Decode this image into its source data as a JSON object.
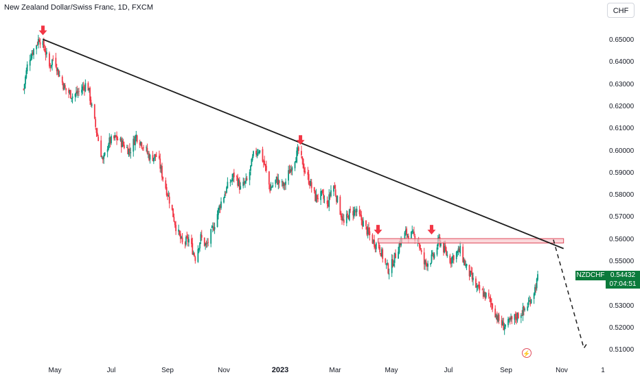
{
  "header": {
    "symbol_title": "New Zealand Dollar/Swiss Franc, 1D, FXCM",
    "currency_label": "CHF"
  },
  "last_price": {
    "symbol": "NZDCHF",
    "value": "0.54432",
    "countdown": "07:04:51",
    "color": "#0b7a3b"
  },
  "colors": {
    "up": "#089981",
    "down": "#f23645",
    "trendline": "#1e1e1e",
    "resistance_fill": "#f8c7cc",
    "resistance_stroke": "#e04a5a",
    "arrow": "#f23645"
  },
  "icons": {
    "flash": "flash-icon"
  },
  "chart_data": {
    "type": "candlestick",
    "title": "New Zealand Dollar/Swiss Franc, 1D, FXCM",
    "y_ticks": [
      "0.65000",
      "0.64000",
      "0.63000",
      "0.62000",
      "0.61000",
      "0.60000",
      "0.59000",
      "0.58000",
      "0.57000",
      "0.56000",
      "0.55000",
      "0.54000",
      "0.53000",
      "0.52000",
      "0.51000"
    ],
    "x_ticks": [
      {
        "label": "May",
        "bold": false
      },
      {
        "label": "Jul",
        "bold": false
      },
      {
        "label": "Sep",
        "bold": false
      },
      {
        "label": "Nov",
        "bold": false
      },
      {
        "label": "2023",
        "bold": true
      },
      {
        "label": "Mar",
        "bold": false
      },
      {
        "label": "May",
        "bold": false
      },
      {
        "label": "Jul",
        "bold": false
      },
      {
        "label": "Sep",
        "bold": false
      },
      {
        "label": "Nov",
        "bold": false
      },
      {
        "label": "1",
        "bold": false
      }
    ],
    "ylim": [
      0.506,
      0.661
    ],
    "price_path": [
      [
        "2022-03-28",
        0.628
      ],
      [
        "2022-04-02",
        0.641
      ],
      [
        "2022-04-08",
        0.646
      ],
      [
        "2022-04-14",
        0.651
      ],
      [
        "2022-04-20",
        0.646
      ],
      [
        "2022-04-25",
        0.638
      ],
      [
        "2022-04-30",
        0.643
      ],
      [
        "2022-05-05",
        0.635
      ],
      [
        "2022-05-12",
        0.628
      ],
      [
        "2022-05-20",
        0.625
      ],
      [
        "2022-05-28",
        0.627
      ],
      [
        "2022-06-05",
        0.631
      ],
      [
        "2022-06-12",
        0.615
      ],
      [
        "2022-06-17",
        0.605
      ],
      [
        "2022-06-22",
        0.595
      ],
      [
        "2022-06-28",
        0.604
      ],
      [
        "2022-07-06",
        0.606
      ],
      [
        "2022-07-14",
        0.603
      ],
      [
        "2022-07-21",
        0.6
      ],
      [
        "2022-07-28",
        0.607
      ],
      [
        "2022-08-04",
        0.603
      ],
      [
        "2022-08-12",
        0.597
      ],
      [
        "2022-08-20",
        0.598
      ],
      [
        "2022-08-26",
        0.588
      ],
      [
        "2022-09-02",
        0.578
      ],
      [
        "2022-09-09",
        0.566
      ],
      [
        "2022-09-16",
        0.558
      ],
      [
        "2022-09-23",
        0.56
      ],
      [
        "2022-09-30",
        0.552
      ],
      [
        "2022-10-06",
        0.561
      ],
      [
        "2022-10-12",
        0.557
      ],
      [
        "2022-10-20",
        0.566
      ],
      [
        "2022-10-27",
        0.576
      ],
      [
        "2022-11-04",
        0.584
      ],
      [
        "2022-11-12",
        0.59
      ],
      [
        "2022-11-18",
        0.583
      ],
      [
        "2022-11-26",
        0.587
      ],
      [
        "2022-12-02",
        0.598
      ],
      [
        "2022-12-08",
        0.601
      ],
      [
        "2022-12-14",
        0.594
      ],
      [
        "2022-12-20",
        0.583
      ],
      [
        "2022-12-27",
        0.587
      ],
      [
        "2023-01-04",
        0.584
      ],
      [
        "2023-01-10",
        0.591
      ],
      [
        "2023-01-16",
        0.597
      ],
      [
        "2023-01-20",
        0.6
      ],
      [
        "2023-01-26",
        0.592
      ],
      [
        "2023-02-01",
        0.586
      ],
      [
        "2023-02-07",
        0.579
      ],
      [
        "2023-02-14",
        0.58
      ],
      [
        "2023-02-20",
        0.575
      ],
      [
        "2023-02-26",
        0.586
      ],
      [
        "2023-03-04",
        0.576
      ],
      [
        "2023-03-10",
        0.567
      ],
      [
        "2023-03-16",
        0.572
      ],
      [
        "2023-03-22",
        0.573
      ],
      [
        "2023-03-29",
        0.569
      ],
      [
        "2023-04-04",
        0.564
      ],
      [
        "2023-04-11",
        0.559
      ],
      [
        "2023-04-17",
        0.557
      ],
      [
        "2023-04-24",
        0.549
      ],
      [
        "2023-04-28",
        0.546
      ],
      [
        "2023-05-04",
        0.552
      ],
      [
        "2023-05-10",
        0.559
      ],
      [
        "2023-05-16",
        0.563
      ],
      [
        "2023-05-22",
        0.562
      ],
      [
        "2023-05-29",
        0.561
      ],
      [
        "2023-06-04",
        0.549
      ],
      [
        "2023-06-10",
        0.55
      ],
      [
        "2023-06-16",
        0.553
      ],
      [
        "2023-06-21",
        0.56
      ],
      [
        "2023-06-27",
        0.555
      ],
      [
        "2023-07-03",
        0.551
      ],
      [
        "2023-07-10",
        0.554
      ],
      [
        "2023-07-14",
        0.555
      ],
      [
        "2023-07-20",
        0.548
      ],
      [
        "2023-07-26",
        0.543
      ],
      [
        "2023-08-01",
        0.538
      ],
      [
        "2023-08-07",
        0.536
      ],
      [
        "2023-08-13",
        0.534
      ],
      [
        "2023-08-18",
        0.53
      ],
      [
        "2023-08-24",
        0.524
      ],
      [
        "2023-08-30",
        0.521
      ],
      [
        "2023-09-04",
        0.522
      ],
      [
        "2023-09-09",
        0.524
      ],
      [
        "2023-09-15",
        0.526
      ],
      [
        "2023-09-21",
        0.528
      ],
      [
        "2023-09-27",
        0.532
      ],
      [
        "2023-10-03",
        0.538
      ],
      [
        "2023-10-07",
        0.544
      ]
    ],
    "annotations": {
      "trendline": [
        [
          "2022-04-18",
          0.6505
        ],
        [
          "2023-11-03",
          0.556
        ]
      ],
      "resistance_zone": {
        "x": [
          "2023-04-16",
          "2023-11-03"
        ],
        "y": [
          0.5585,
          0.5605
        ]
      },
      "projection": [
        [
          "2023-10-23",
          0.56
        ],
        [
          "2023-10-26",
          0.5555
        ],
        [
          "2023-11-25",
          0.511
        ],
        [
          "2023-11-29",
          0.5135
        ]
      ],
      "down_arrows": [
        [
          "2022-04-18",
          0.6505
        ],
        [
          "2023-01-22",
          0.601
        ],
        [
          "2023-04-16",
          0.5605
        ],
        [
          "2023-06-13",
          0.5605
        ]
      ]
    }
  }
}
